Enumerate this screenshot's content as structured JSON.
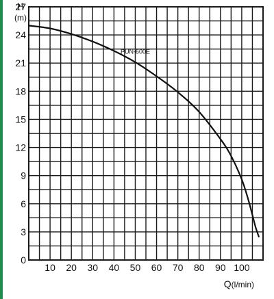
{
  "colors": {
    "accent_bar": "#1e8c4e",
    "grid": "#1a1a1a",
    "curve": "#111111",
    "background": "#ffffff"
  },
  "chart_data": {
    "type": "line",
    "ylabel": "H",
    "ylabel_unit": "(m)",
    "xlabel": "Q",
    "xlabel_unit": "(l/min)",
    "xlim": [
      0,
      110
    ],
    "ylim": [
      0,
      27
    ],
    "x_ticks": [
      "10",
      "20",
      "30",
      "40",
      "50",
      "60",
      "70",
      "80",
      "90",
      "100"
    ],
    "y_ticks": [
      "0",
      "3",
      "6",
      "9",
      "12",
      "15",
      "18",
      "21",
      "24",
      "27"
    ],
    "grid": true,
    "series": [
      {
        "name": "PUN-600E",
        "x": [
          0,
          10,
          20,
          30,
          40,
          50,
          60,
          70,
          80,
          90,
          95,
          100,
          103,
          105,
          106.5,
          108
        ],
        "y": [
          25,
          24.7,
          24.1,
          23.3,
          22.3,
          21.1,
          19.6,
          17.9,
          15.8,
          12.9,
          11.1,
          8.6,
          6.5,
          4.8,
          3.5,
          2.5
        ]
      }
    ]
  }
}
